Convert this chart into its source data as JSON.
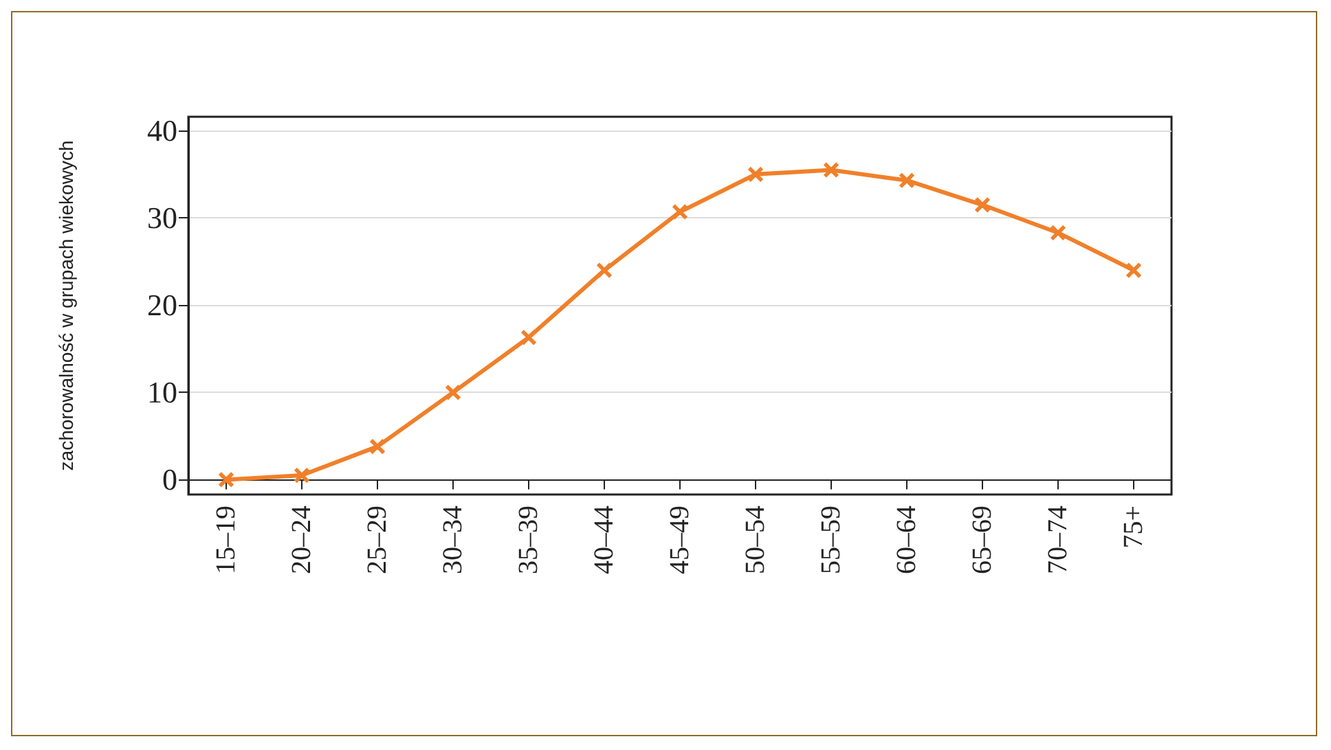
{
  "chart_data": {
    "type": "line",
    "ylabel": "zachorowalność w grupach wiekowych",
    "categories": [
      "15–19",
      "20–24",
      "25–29",
      "30–34",
      "35–39",
      "40–44",
      "45–49",
      "50–54",
      "55–59",
      "60–64",
      "65–69",
      "70–74",
      "75+"
    ],
    "series": [
      {
        "color": "#f0802a",
        "values": [
          0,
          0.5,
          3.8,
          10,
          16.3,
          24,
          30.7,
          35,
          35.5,
          34.3,
          31.5,
          28.3,
          24
        ]
      }
    ],
    "ylim": [
      -1.7,
      41.6
    ],
    "yticks": [
      0,
      10,
      20,
      30,
      40
    ],
    "grid": "y",
    "marker": "cross",
    "line_style": "solid"
  }
}
